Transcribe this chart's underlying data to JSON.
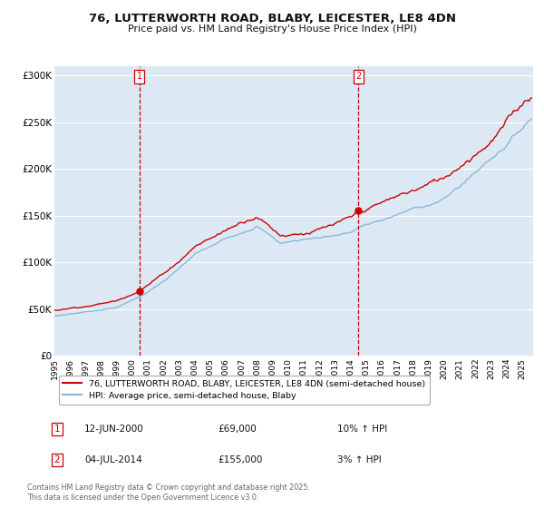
{
  "title": "76, LUTTERWORTH ROAD, BLABY, LEICESTER, LE8 4DN",
  "subtitle": "Price paid vs. HM Land Registry's House Price Index (HPI)",
  "title_fontsize": 9.5,
  "subtitle_fontsize": 8,
  "background_color": "#ffffff",
  "plot_bg_color": "#dce9f5",
  "grid_color": "#ffffff",
  "red_line_color": "#cc0000",
  "blue_line_color": "#8ab8d8",
  "ylabel_ticks": [
    "£0",
    "£50K",
    "£100K",
    "£150K",
    "£200K",
    "£250K",
    "£300K"
  ],
  "ytick_values": [
    0,
    50000,
    100000,
    150000,
    200000,
    250000,
    300000
  ],
  "ylim": [
    0,
    310000
  ],
  "xlim_start": 1995.0,
  "xlim_end": 2025.7,
  "xtick_years": [
    1995,
    1996,
    1997,
    1998,
    1999,
    2000,
    2001,
    2002,
    2003,
    2004,
    2005,
    2006,
    2007,
    2008,
    2009,
    2010,
    2011,
    2012,
    2013,
    2014,
    2015,
    2016,
    2017,
    2018,
    2019,
    2020,
    2021,
    2022,
    2023,
    2024,
    2025
  ],
  "marker1_x": 2000.44,
  "marker1_y": 69000,
  "marker2_x": 2014.5,
  "marker2_y": 155000,
  "vline1_x": 2000.44,
  "vline2_x": 2014.5,
  "shade_start": 2000.44,
  "shade_end": 2014.5,
  "legend_label_red": "76, LUTTERWORTH ROAD, BLABY, LEICESTER, LE8 4DN (semi-detached house)",
  "legend_label_blue": "HPI: Average price, semi-detached house, Blaby",
  "annotation1_label": "1",
  "annotation1_date": "12-JUN-2000",
  "annotation1_price": "£69,000",
  "annotation1_hpi": "10% ↑ HPI",
  "annotation2_label": "2",
  "annotation2_date": "04-JUL-2014",
  "annotation2_price": "£155,000",
  "annotation2_hpi": "3% ↑ HPI",
  "footer": "Contains HM Land Registry data © Crown copyright and database right 2025.\nThis data is licensed under the Open Government Licence v3.0."
}
